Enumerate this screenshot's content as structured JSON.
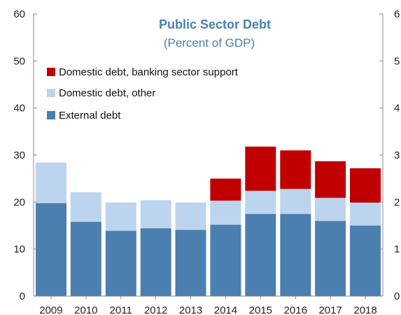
{
  "chart_data": {
    "type": "bar",
    "stacked": true,
    "title": "Public Sector Debt",
    "subtitle": "(Percent of GDP)",
    "categories": [
      "2009",
      "2010",
      "2011",
      "2012",
      "2013",
      "2014",
      "2015",
      "2016",
      "2017",
      "2018"
    ],
    "series": [
      {
        "name": "External debt",
        "color": "#4a7fb0",
        "values": [
          19.8,
          15.8,
          13.9,
          14.4,
          14.1,
          15.2,
          17.5,
          17.5,
          16.0,
          15.0
        ]
      },
      {
        "name": "Domestic debt, other",
        "color": "#bcd4ee",
        "values": [
          8.6,
          6.3,
          6.0,
          6.0,
          5.8,
          5.1,
          4.9,
          5.3,
          4.9,
          4.9
        ]
      },
      {
        "name": "Domestic debt, banking sector support",
        "color": "#c00000",
        "values": [
          0,
          0,
          0,
          0,
          0,
          4.7,
          9.4,
          8.2,
          7.8,
          7.3
        ]
      }
    ],
    "ylim": [
      0,
      60
    ],
    "yticks": [
      0,
      10,
      20,
      30,
      40,
      50,
      60
    ],
    "right_axis_ticks": [
      "0",
      "1",
      "2",
      "3",
      "4",
      "5",
      "6"
    ],
    "legend_order": [
      "Domestic debt, banking sector support",
      "Domestic debt, other",
      "External debt"
    ],
    "legend_position": "top-left",
    "grid": false,
    "title_color": "#4a7fb0"
  }
}
